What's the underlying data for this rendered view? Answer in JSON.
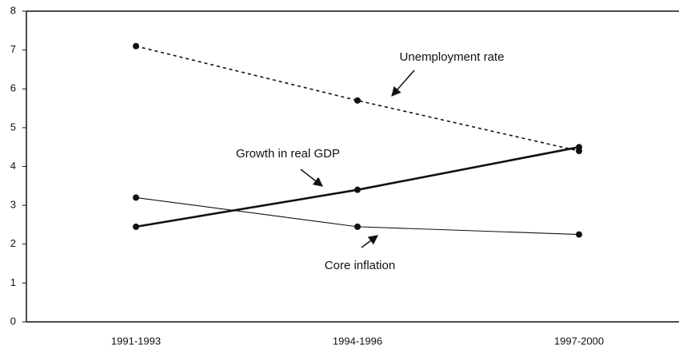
{
  "chart_data": {
    "type": "line",
    "categories": [
      "1991-1993",
      "1994-1996",
      "1997-2000"
    ],
    "series": [
      {
        "name": "Unemployment rate",
        "color": "#111111",
        "style": "dashed",
        "values": [
          7.1,
          5.7,
          4.4
        ]
      },
      {
        "name": "Growth in real GDP",
        "color": "#111111",
        "style": "thick",
        "values": [
          2.45,
          3.4,
          4.5
        ]
      },
      {
        "name": "Core inflation",
        "color": "#111111",
        "style": "thin",
        "values": [
          3.2,
          2.45,
          2.25
        ]
      }
    ],
    "ylim": [
      0,
      8
    ],
    "yticks": [
      0,
      1,
      2,
      3,
      4,
      5,
      6,
      7,
      8
    ],
    "grid": false
  }
}
